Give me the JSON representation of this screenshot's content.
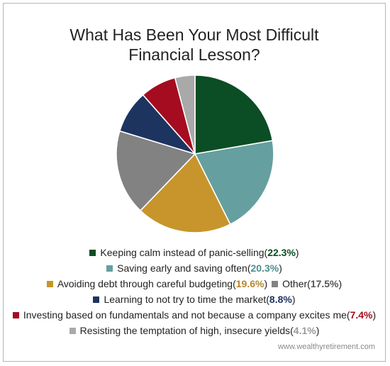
{
  "chart_data": {
    "type": "pie",
    "title_lines": [
      "What Has Been Your Most Difficult",
      "Financial Lesson?"
    ],
    "categories": [
      "Keeping calm instead of panic-selling",
      "Saving early and saving often",
      "Avoiding debt through careful budgeting",
      "Other",
      "Learning to not try to time the market",
      "Investing based on fundamentals and not because a company excites me",
      "Resisting the temptation of high, insecure yields"
    ],
    "values": [
      22.3,
      20.3,
      19.6,
      17.5,
      8.8,
      7.4,
      4.1
    ],
    "value_labels": [
      "22.3%",
      "20.3%",
      "19.6%",
      "17.5%",
      "8.8%",
      "7.4%",
      "4.1%"
    ],
    "colors": [
      "#0b4d24",
      "#669f9f",
      "#c7952c",
      "#828282",
      "#1d3460",
      "#a50c20",
      "#a9a9a9"
    ],
    "label_colors": [
      "#0b4d24",
      "#4e8e8e",
      "#b7862a",
      "#555555",
      "#1d3460",
      "#a50c20",
      "#9a9a9a"
    ],
    "legend_position": "bottom",
    "legend_rows": [
      [
        0
      ],
      [
        1
      ],
      [
        2,
        3
      ],
      [
        4
      ],
      [
        5
      ],
      [
        6
      ]
    ]
  },
  "watermark": "www.wealthyretirement.com"
}
